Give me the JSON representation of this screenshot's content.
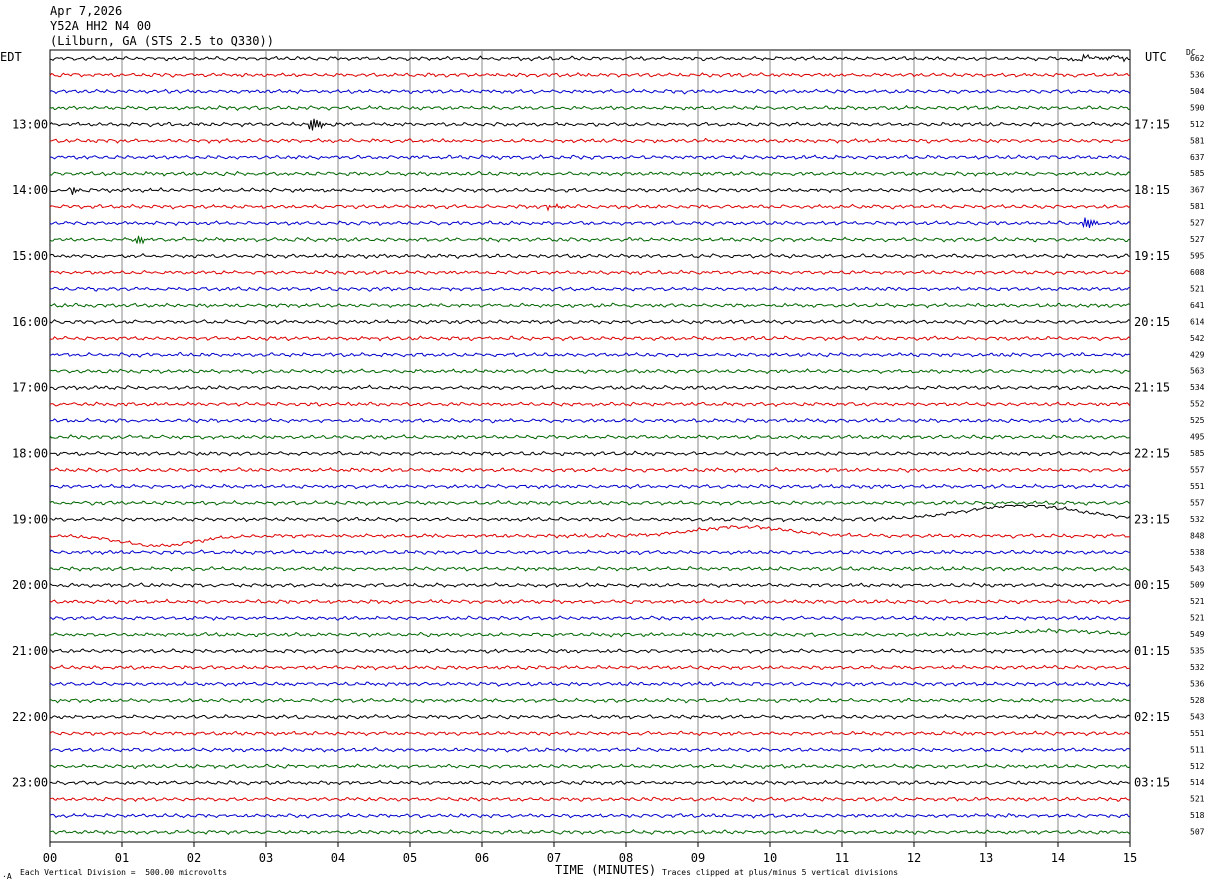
{
  "header": {
    "date": "Apr 7,2026",
    "station": "Y52A HH2 N4 00",
    "location": "(Lilburn, GA (STS 2.5 to Q330))"
  },
  "labels": {
    "left_zone": "EDT",
    "right_zone": "UTC",
    "dc": "DC"
  },
  "footer": {
    "scale_note": "Each Vertical Division =  500.00 microvolts",
    "clip_note": "Traces clipped at plus/minus 5 vertical divisions",
    "corner_mark": "·A"
  },
  "chart_data": {
    "type": "line",
    "xlabel": "TIME (MINUTES)",
    "x_ticks": [
      "00",
      "01",
      "02",
      "03",
      "04",
      "05",
      "06",
      "07",
      "08",
      "09",
      "10",
      "11",
      "12",
      "13",
      "14",
      "15"
    ],
    "xlim": [
      0,
      15
    ],
    "left_hour_labels": [
      "13:00",
      "14:00",
      "15:00",
      "16:00",
      "17:00",
      "18:00",
      "19:00",
      "20:00",
      "21:00",
      "22:00",
      "23:00"
    ],
    "right_hour_labels": [
      "17:15",
      "18:15",
      "19:15",
      "20:15",
      "21:15",
      "22:15",
      "23:15",
      "00:15",
      "01:15",
      "02:15",
      "03:15"
    ],
    "first_labeled_trace": 4,
    "traces_per_hour": 4,
    "trace_colors": [
      "#000000",
      "#dd0000",
      "#0000cc",
      "#006600"
    ],
    "dc_offsets": [
      662,
      536,
      504,
      590,
      512,
      581,
      637,
      585,
      367,
      581,
      527,
      527,
      595,
      608,
      521,
      641,
      614,
      542,
      429,
      563,
      534,
      552,
      525,
      495,
      585,
      557,
      551,
      557,
      532,
      848,
      538,
      543,
      509,
      521,
      521,
      549,
      535,
      532,
      536,
      528,
      543,
      551,
      511,
      512,
      514,
      521,
      518,
      507
    ],
    "events": [
      {
        "trace": 0,
        "type": "noise",
        "start": 14.2,
        "end": 15.0,
        "amp": 3
      },
      {
        "trace": 4,
        "type": "quake",
        "at": 3.6,
        "amp": 8,
        "dur": 0.45
      },
      {
        "trace": 8,
        "type": "quake",
        "at": 0.3,
        "amp": 5,
        "dur": 0.3
      },
      {
        "trace": 9,
        "type": "quake",
        "at": 6.9,
        "amp": 9,
        "dur": 0.25
      },
      {
        "trace": 10,
        "type": "quake",
        "at": 14.35,
        "amp": 7,
        "dur": 0.35
      },
      {
        "trace": 11,
        "type": "quake",
        "at": 1.2,
        "amp": 5,
        "dur": 0.3
      },
      {
        "trace": 28,
        "type": "swell",
        "at": 13.5,
        "amp": -14,
        "width": 1.1
      },
      {
        "trace": 29,
        "type": "swell",
        "at": 1.5,
        "amp": 10,
        "width": 0.7
      },
      {
        "trace": 29,
        "type": "swell",
        "at": 9.6,
        "amp": -9,
        "width": 0.9
      },
      {
        "trace": 35,
        "type": "swell",
        "at": 14.0,
        "amp": -4,
        "width": 0.8
      }
    ]
  }
}
